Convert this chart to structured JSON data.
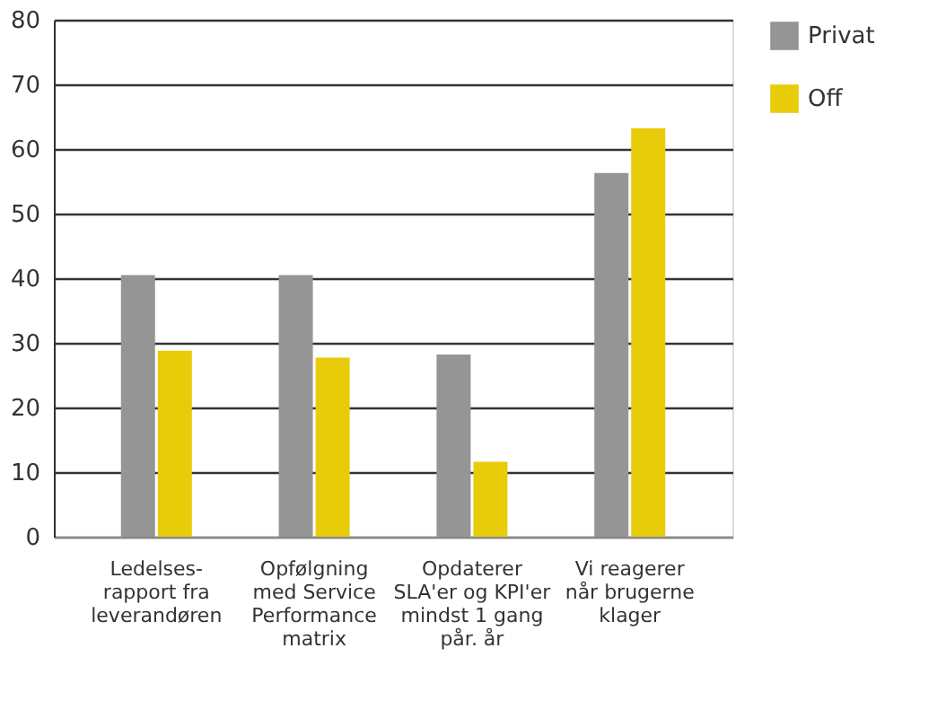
{
  "chart_data": {
    "type": "bar",
    "categories": [
      "Ledelses-\nrapport fra\nleverandøren",
      "Opfølgning\nmed Service\nPerformance\nmatrix",
      "Opdaterer\nSLA'er og KPI'er\nmindst 1 gang\npår. år",
      "Vi reagerer\nnår brugerne\nklager"
    ],
    "series": [
      {
        "name": "Privat",
        "color": "#959595",
        "values": [
          40.5,
          40.5,
          28.2,
          56.3
        ]
      },
      {
        "name": "Off",
        "color": "#e8cc0a",
        "values": [
          28.8,
          27.7,
          11.6,
          63.2
        ]
      }
    ],
    "ylim": [
      0,
      80
    ],
    "yticks": [
      0,
      10,
      20,
      30,
      40,
      50,
      60,
      70,
      80
    ],
    "grid": "y",
    "legend": "top right"
  }
}
